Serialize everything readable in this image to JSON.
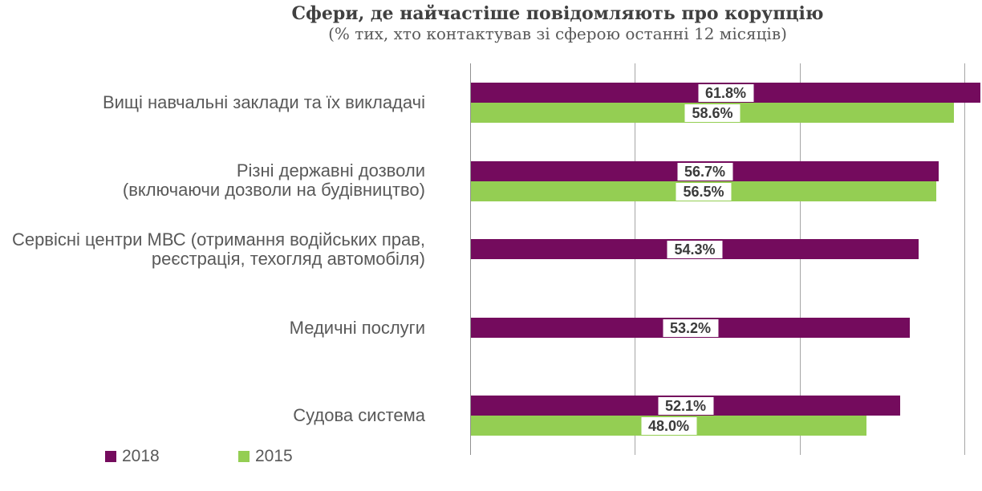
{
  "title": "Сфери, де найчастіше повідомляють про корупцію",
  "subtitle": "(% тих, хто контактував зі сферою останні 12 місяців)",
  "legend": [
    {
      "label": "2018",
      "color": "#740B5D"
    },
    {
      "label": "2015",
      "color": "#94CE53"
    }
  ],
  "chart_data": {
    "type": "bar",
    "orientation": "horizontal",
    "title": "Сфери, де найчастіше повідомляють про корупцію",
    "subtitle": "(% тих, хто контактував зі сферою останні 12 місяців)",
    "categories": [
      [
        "Вищі навчальні заклади та їх викладачі"
      ],
      [
        "Різні державні дозволи",
        "(включаючи дозволи на будівництво)"
      ],
      [
        "Сервісні центри МВС (отримання водійських прав,",
        "реєстрація, техогляд автомобіля)"
      ],
      [
        "Медичні послуги"
      ],
      [
        "Судова система"
      ]
    ],
    "series": [
      {
        "name": "2018",
        "color": "#740B5D",
        "values": [
          61.8,
          56.7,
          54.3,
          53.2,
          52.1
        ]
      },
      {
        "name": "2015",
        "color": "#94CE53",
        "values": [
          58.6,
          56.5,
          null,
          null,
          48.0
        ]
      }
    ],
    "value_labels": [
      [
        "61.8%",
        "58.6%"
      ],
      [
        "56.7%",
        "56.5%"
      ],
      [
        "54.3%",
        null
      ],
      [
        "53.2%",
        null
      ],
      [
        "52.1%",
        "48.0%"
      ]
    ],
    "xlim": [
      0,
      62.1
    ],
    "gridlines": [
      20,
      40,
      60
    ],
    "gridline_labels_shown": false,
    "grid": "vertical",
    "legend_position": "bottom-left",
    "units": "%"
  }
}
